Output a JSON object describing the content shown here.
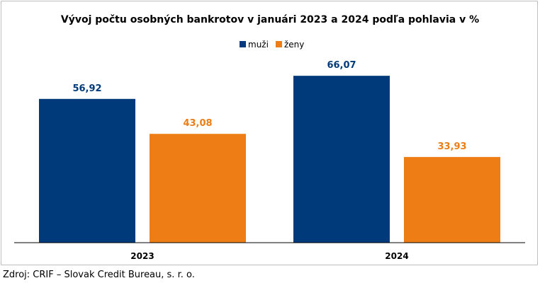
{
  "chart_data": {
    "type": "bar",
    "title": "Vývoj počtu osobných bankrotov v januári 2023 a 2024 podľa pohlavia v %",
    "categories": [
      "2023",
      "2024"
    ],
    "series": [
      {
        "name": "muži",
        "color": "#003a7a",
        "values": [
          56.92,
          66.07
        ],
        "labels": [
          "56,92",
          "66,07"
        ]
      },
      {
        "name": "ženy",
        "color": "#ed7d14",
        "values": [
          43.08,
          33.93
        ],
        "labels": [
          "43,08",
          "33,93"
        ]
      }
    ],
    "ylim": [
      0,
      70
    ],
    "grid": false,
    "legend": "top-center",
    "xlabel": "",
    "ylabel": ""
  },
  "source": "Zdroj: CRIF – Slovak Credit Bureau, s. r. o."
}
